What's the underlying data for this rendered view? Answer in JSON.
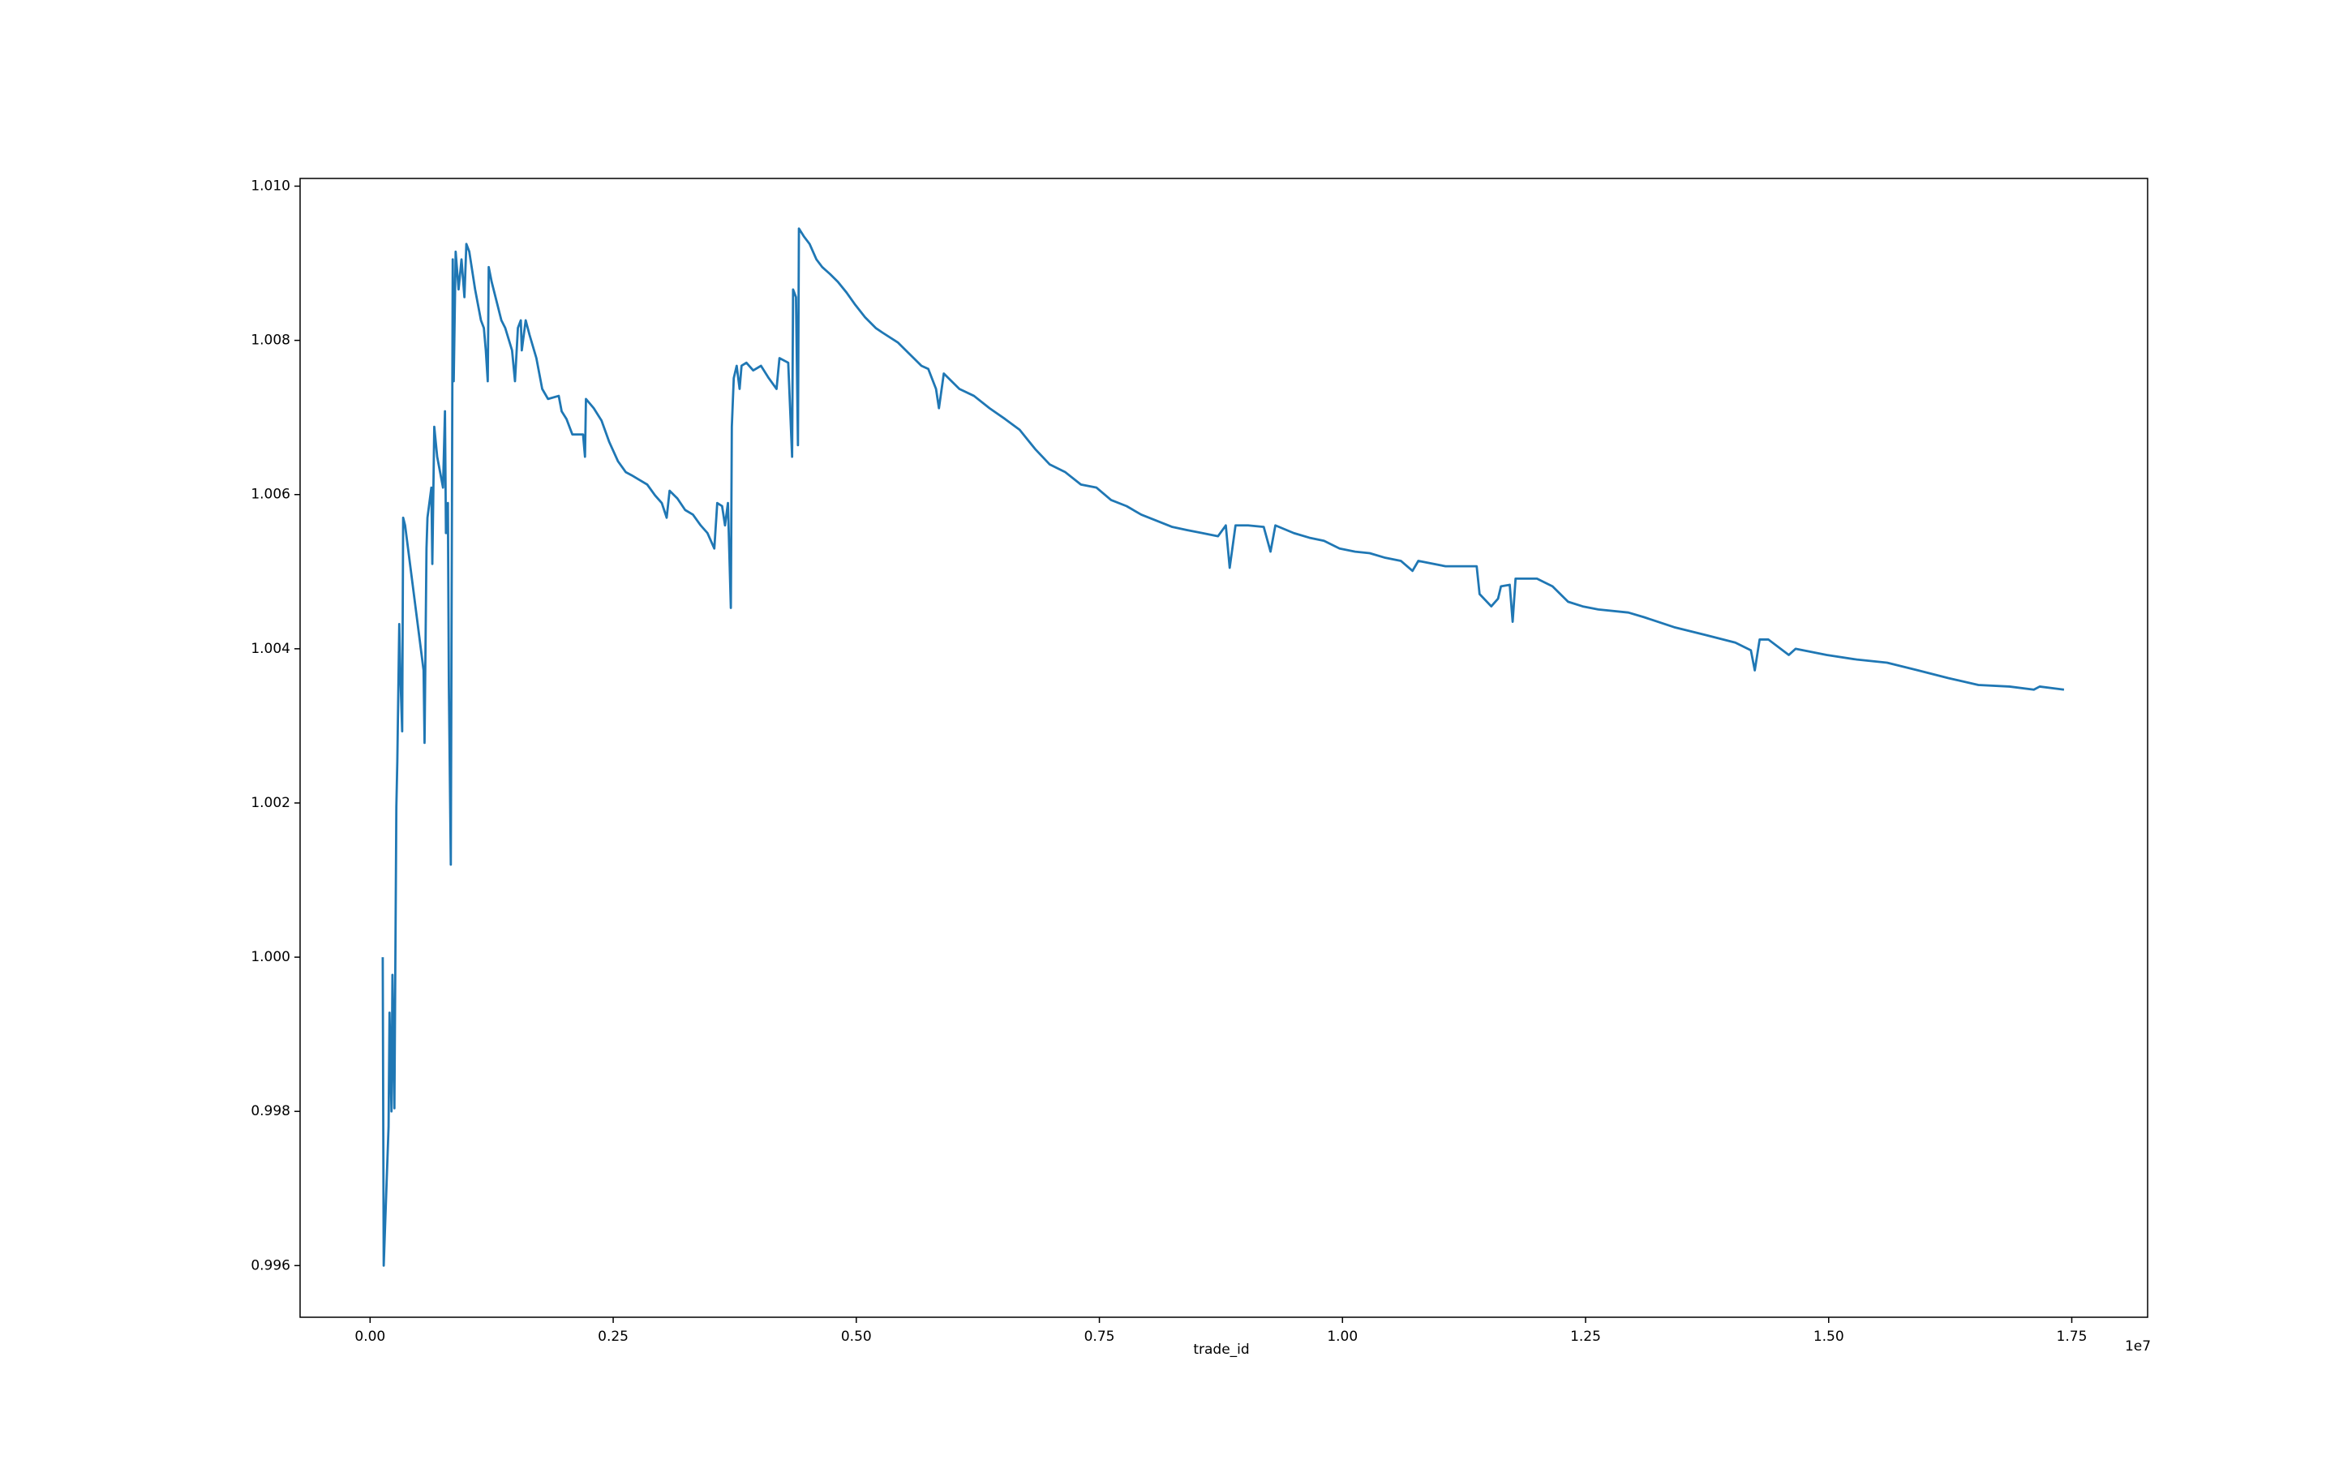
{
  "chart_data": {
    "type": "line",
    "x_label": "trade_id",
    "x_offset_label": "1e7",
    "xlim": [
      -0.072,
      1.828
    ],
    "ylim": [
      0.99533,
      1.0101
    ],
    "xticks": [
      {
        "value": 0,
        "label": "0.00"
      },
      0.25,
      {
        "value": 0.5,
        "label": "0.50"
      },
      0.75,
      {
        "value": 1,
        "label": "1.00"
      },
      1.25,
      {
        "value": 1.5,
        "label": "1.50"
      },
      1.75
    ],
    "yticks": [
      0.996,
      0.998,
      {
        "value": 1,
        "label": "1.000"
      },
      1.002,
      1.004,
      1.006,
      1.008,
      {
        "value": 1.01,
        "label": "1.010"
      }
    ],
    "grid": false,
    "series": [
      {
        "color": "#1f77b4",
        "x": [
          0.013,
          0.014,
          0.019,
          0.02,
          0.022,
          0.023,
          0.025,
          0.027,
          0.028,
          0.03,
          0.031,
          0.033,
          0.034,
          0.036,
          0.055,
          0.056,
          0.058,
          0.059,
          0.063,
          0.064,
          0.066,
          0.069,
          0.075,
          0.077,
          0.078,
          0.08,
          0.081,
          0.083,
          0.085,
          0.086,
          0.088,
          0.091,
          0.094,
          0.097,
          0.099,
          0.102,
          0.108,
          0.114,
          0.117,
          0.119,
          0.121,
          0.122,
          0.125,
          0.131,
          0.135,
          0.139,
          0.146,
          0.149,
          0.152,
          0.155,
          0.156,
          0.16,
          0.164,
          0.171,
          0.177,
          0.183,
          0.194,
          0.197,
          0.202,
          0.208,
          0.219,
          0.221,
          0.222,
          0.23,
          0.238,
          0.246,
          0.255,
          0.263,
          0.269,
          0.277,
          0.285,
          0.293,
          0.3,
          0.305,
          0.308,
          0.316,
          0.324,
          0.332,
          0.34,
          0.347,
          0.354,
          0.357,
          0.362,
          0.365,
          0.368,
          0.371,
          0.372,
          0.374,
          0.377,
          0.38,
          0.382,
          0.387,
          0.394,
          0.402,
          0.41,
          0.418,
          0.421,
          0.43,
          0.434,
          0.435,
          0.438,
          0.44,
          0.441,
          0.446,
          0.452,
          0.459,
          0.465,
          0.473,
          0.481,
          0.49,
          0.499,
          0.509,
          0.52,
          0.527,
          0.543,
          0.559,
          0.567,
          0.574,
          0.582,
          0.585,
          0.59,
          0.606,
          0.621,
          0.637,
          0.653,
          0.668,
          0.684,
          0.699,
          0.715,
          0.731,
          0.747,
          0.762,
          0.778,
          0.793,
          0.809,
          0.825,
          0.84,
          0.856,
          0.872,
          0.88,
          0.884,
          0.89,
          0.903,
          0.919,
          0.926,
          0.931,
          0.95,
          0.966,
          0.981,
          0.997,
          1.013,
          1.028,
          1.044,
          1.06,
          1.072,
          1.078,
          1.106,
          1.138,
          1.141,
          1.153,
          1.16,
          1.163,
          1.172,
          1.175,
          1.178,
          1.2,
          1.216,
          1.232,
          1.247,
          1.263,
          1.294,
          1.31,
          1.341,
          1.373,
          1.404,
          1.42,
          1.424,
          1.429,
          1.438,
          1.459,
          1.466,
          1.498,
          1.529,
          1.56,
          1.592,
          1.623,
          1.654,
          1.686,
          1.711,
          1.717,
          1.742
        ],
        "values": [
          1.0,
          0.996,
          0.9978,
          0.99928,
          0.998,
          0.99977,
          0.99804,
          1.00195,
          1.00254,
          1.00432,
          1.00372,
          1.00293,
          1.0057,
          1.0056,
          1.00372,
          1.00278,
          1.0053,
          1.0057,
          1.00609,
          1.0051,
          1.00688,
          1.00649,
          1.00609,
          1.00708,
          1.0055,
          1.00589,
          1.00353,
          1.0012,
          1.00905,
          1.00747,
          1.00915,
          1.00866,
          1.00905,
          1.00856,
          1.00925,
          1.00915,
          1.00866,
          1.00826,
          1.00816,
          1.00787,
          1.00747,
          1.00895,
          1.00876,
          1.00846,
          1.00826,
          1.00816,
          1.00787,
          1.00747,
          1.00816,
          1.00826,
          1.00787,
          1.00826,
          1.00807,
          1.00777,
          1.00737,
          1.00724,
          1.00728,
          1.00708,
          1.00698,
          1.00678,
          1.00678,
          1.00649,
          1.00724,
          1.00712,
          1.00696,
          1.00668,
          1.00643,
          1.00629,
          1.00625,
          1.00619,
          1.00613,
          1.00599,
          1.00589,
          1.0057,
          1.00605,
          1.00595,
          1.0058,
          1.00574,
          1.0056,
          1.0055,
          1.0053,
          1.00589,
          1.00585,
          1.0056,
          1.00589,
          1.00453,
          1.00688,
          1.00751,
          1.00767,
          1.00737,
          1.00767,
          1.00771,
          1.00761,
          1.00767,
          1.00751,
          1.00737,
          1.00777,
          1.00771,
          1.00649,
          1.00866,
          1.00856,
          1.00664,
          1.00945,
          1.00935,
          1.00925,
          1.00905,
          1.00895,
          1.00886,
          1.00876,
          1.00862,
          1.00846,
          1.0083,
          1.00816,
          1.0081,
          1.00797,
          1.00777,
          1.00767,
          1.00763,
          1.00737,
          1.00712,
          1.00757,
          1.00737,
          1.00728,
          1.00712,
          1.00698,
          1.00684,
          1.00659,
          1.00639,
          1.00629,
          1.00613,
          1.00609,
          1.00593,
          1.00585,
          1.00574,
          1.00566,
          1.00558,
          1.00554,
          1.0055,
          1.00546,
          1.0056,
          1.00505,
          1.0056,
          1.0056,
          1.00558,
          1.00526,
          1.0056,
          1.0055,
          1.00544,
          1.0054,
          1.0053,
          1.00526,
          1.00524,
          1.00518,
          1.00514,
          1.00501,
          1.00514,
          1.00507,
          1.00507,
          1.00471,
          1.00455,
          1.00465,
          1.00481,
          1.00483,
          1.00435,
          1.00491,
          1.00491,
          1.00481,
          1.00461,
          1.00455,
          1.00451,
          1.00447,
          1.00441,
          1.00428,
          1.00418,
          1.00408,
          1.00398,
          1.00372,
          1.00412,
          1.00412,
          1.00392,
          1.004,
          1.00392,
          1.00386,
          1.00382,
          1.00372,
          1.00362,
          1.00353,
          1.00351,
          1.00347,
          1.00351,
          1.00347
        ]
      }
    ]
  }
}
